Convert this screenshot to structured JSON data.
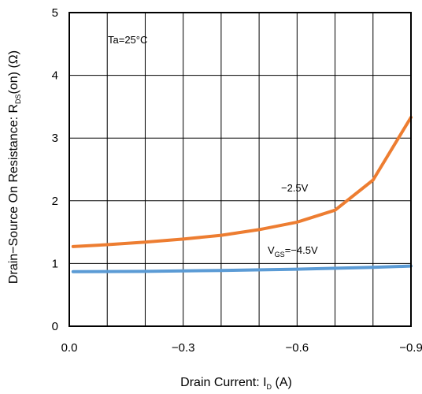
{
  "chart_data": {
    "type": "line",
    "xlabel": {
      "main": "Drain Current: I",
      "sub": "D",
      "tail": " (A)"
    },
    "ylabel": {
      "main": "Drain−Source On Resistance: R",
      "sub": "DS",
      "tail": "(on) (Ω)"
    },
    "xlim": [
      0,
      -0.9
    ],
    "ylim": [
      0,
      5
    ],
    "x_ticks": [
      0,
      -0.3,
      -0.6,
      -0.9
    ],
    "x_tick_labels": [
      "0.0",
      "−0.3",
      "−0.6",
      "−0.9"
    ],
    "y_ticks": [
      0,
      1,
      2,
      3,
      4,
      5
    ],
    "y_tick_labels": [
      "0",
      "1",
      "2",
      "3",
      "4",
      "5"
    ],
    "grid": {
      "x_step": -0.1,
      "y_step": 1
    },
    "annotations": {
      "condition": "Ta=25°C",
      "vgs_prefix": "V",
      "vgs_sub": "GS",
      "vgs_value": "=−4.5V",
      "label_25": "−2.5V"
    },
    "series": [
      {
        "name": "−2.5V",
        "color": "#ed7d31",
        "x": [
          -0.01,
          -0.1,
          -0.2,
          -0.3,
          -0.4,
          -0.5,
          -0.6,
          -0.7,
          -0.8,
          -0.9
        ],
        "y": [
          1.27,
          1.3,
          1.34,
          1.39,
          1.45,
          1.54,
          1.66,
          1.85,
          2.33,
          3.33
        ]
      },
      {
        "name": "V_GS=−4.5V",
        "color": "#5b9bd5",
        "x": [
          -0.01,
          -0.2,
          -0.4,
          -0.6,
          -0.8,
          -0.9
        ],
        "y": [
          0.87,
          0.875,
          0.89,
          0.91,
          0.94,
          0.96
        ]
      }
    ]
  }
}
